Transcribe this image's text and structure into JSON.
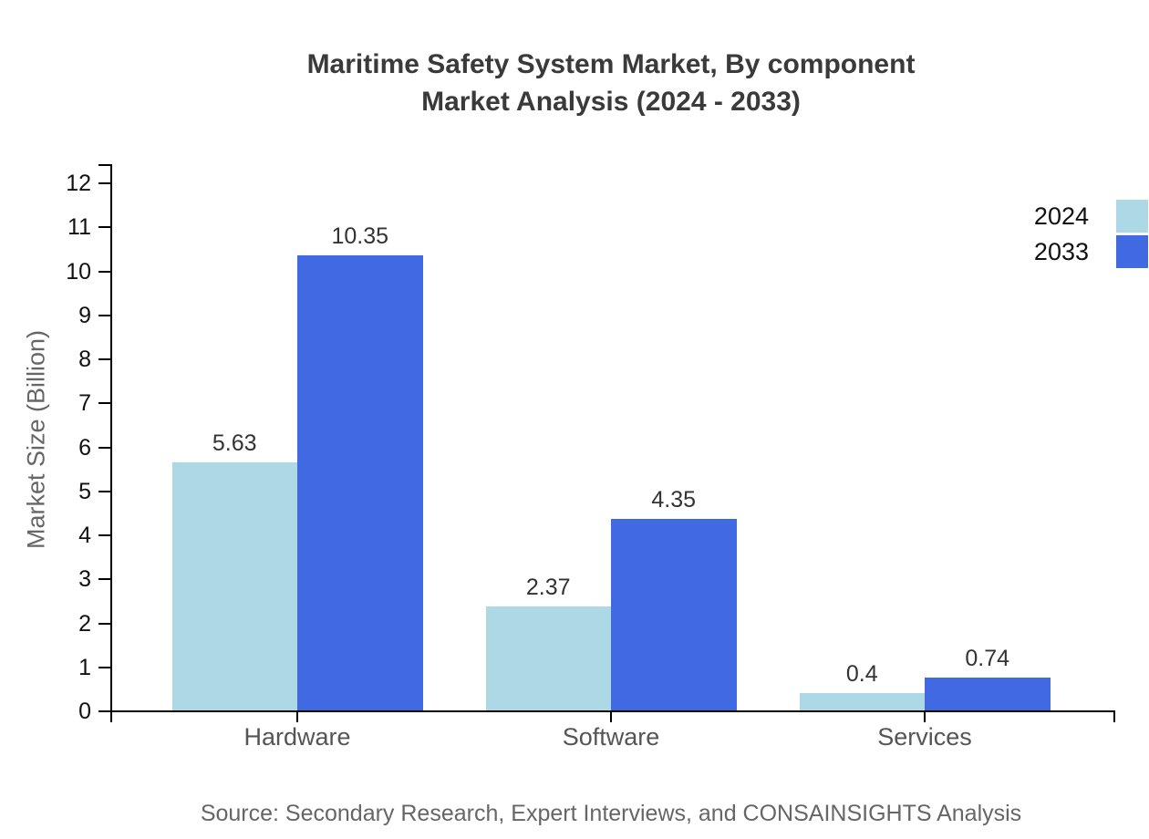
{
  "title": {
    "line1": "Maritime Safety System Market, By component",
    "line2": "Market Analysis (2024 - 2033)"
  },
  "source": "Source: Secondary Research, Expert Interviews, and CONSAINSIGHTS Analysis",
  "chart_data": {
    "type": "bar",
    "categories": [
      "Hardware",
      "Software",
      "Services"
    ],
    "series": [
      {
        "name": "2024",
        "color": "#ADD8E6",
        "values": [
          5.63,
          2.37,
          0.4
        ],
        "labels": [
          "5.63",
          "2.37",
          "0.4"
        ]
      },
      {
        "name": "2033",
        "color": "#4169E1",
        "values": [
          10.35,
          4.35,
          0.74
        ],
        "labels": [
          "10.35",
          "4.35",
          "0.74"
        ]
      }
    ],
    "xlabel": "",
    "ylabel": "Market Size (Billion)",
    "ylim": [
      0,
      12
    ],
    "yticks": [
      0,
      1,
      2,
      3,
      4,
      5,
      6,
      7,
      8,
      9,
      10,
      11,
      12
    ],
    "legend_position": "top-right",
    "grid": false
  }
}
